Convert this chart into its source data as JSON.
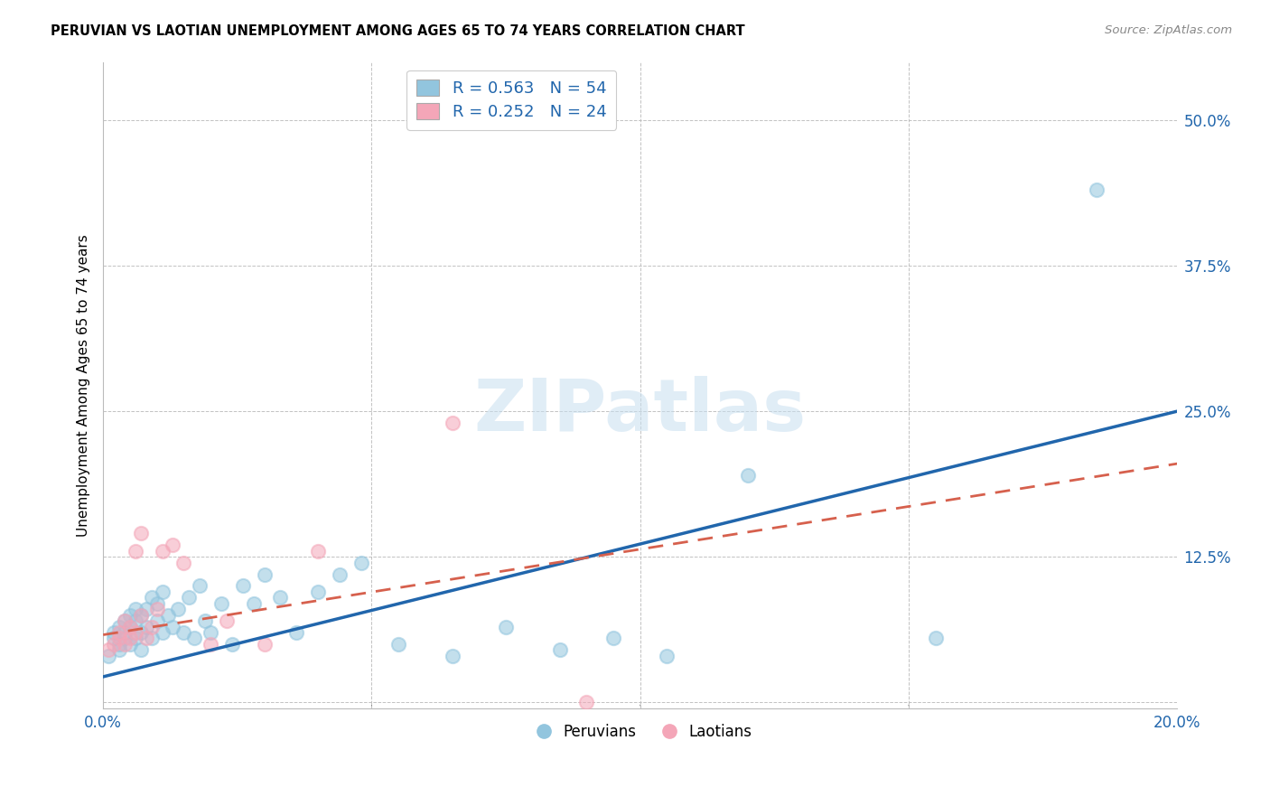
{
  "title": "PERUVIAN VS LAOTIAN UNEMPLOYMENT AMONG AGES 65 TO 74 YEARS CORRELATION CHART",
  "source": "Source: ZipAtlas.com",
  "ylabel": "Unemployment Among Ages 65 to 74 years",
  "xlim": [
    0.0,
    0.2
  ],
  "ylim": [
    -0.005,
    0.55
  ],
  "ytick_vals": [
    0.0,
    0.125,
    0.25,
    0.375,
    0.5
  ],
  "ytick_labels": [
    "",
    "12.5%",
    "25.0%",
    "37.5%",
    "50.0%"
  ],
  "xtick_vals": [
    0.0,
    0.05,
    0.1,
    0.15,
    0.2
  ],
  "xtick_labels": [
    "0.0%",
    "",
    "",
    "",
    "20.0%"
  ],
  "peruvian_color": "#92c5de",
  "laotian_color": "#f4a6b8",
  "peruvian_line_color": "#2166ac",
  "laotian_line_color": "#d6604d",
  "peruvian_x": [
    0.001,
    0.002,
    0.002,
    0.003,
    0.003,
    0.003,
    0.004,
    0.004,
    0.004,
    0.005,
    0.005,
    0.005,
    0.006,
    0.006,
    0.006,
    0.007,
    0.007,
    0.007,
    0.008,
    0.008,
    0.009,
    0.009,
    0.01,
    0.01,
    0.011,
    0.011,
    0.012,
    0.013,
    0.014,
    0.015,
    0.016,
    0.017,
    0.018,
    0.019,
    0.02,
    0.022,
    0.024,
    0.026,
    0.028,
    0.03,
    0.033,
    0.036,
    0.04,
    0.044,
    0.048,
    0.055,
    0.065,
    0.075,
    0.085,
    0.095,
    0.105,
    0.12,
    0.155,
    0.185
  ],
  "peruvian_y": [
    0.04,
    0.055,
    0.06,
    0.045,
    0.05,
    0.065,
    0.055,
    0.06,
    0.07,
    0.05,
    0.065,
    0.075,
    0.055,
    0.07,
    0.08,
    0.045,
    0.06,
    0.075,
    0.065,
    0.08,
    0.055,
    0.09,
    0.07,
    0.085,
    0.06,
    0.095,
    0.075,
    0.065,
    0.08,
    0.06,
    0.09,
    0.055,
    0.1,
    0.07,
    0.06,
    0.085,
    0.05,
    0.1,
    0.085,
    0.11,
    0.09,
    0.06,
    0.095,
    0.11,
    0.12,
    0.05,
    0.04,
    0.065,
    0.045,
    0.055,
    0.04,
    0.195,
    0.055,
    0.44
  ],
  "laotian_x": [
    0.001,
    0.002,
    0.003,
    0.003,
    0.004,
    0.004,
    0.005,
    0.005,
    0.006,
    0.006,
    0.007,
    0.007,
    0.008,
    0.009,
    0.01,
    0.011,
    0.013,
    0.015,
    0.02,
    0.023,
    0.03,
    0.04,
    0.065,
    0.09
  ],
  "laotian_y": [
    0.045,
    0.05,
    0.055,
    0.06,
    0.05,
    0.07,
    0.055,
    0.065,
    0.06,
    0.13,
    0.075,
    0.145,
    0.055,
    0.065,
    0.08,
    0.13,
    0.135,
    0.12,
    0.05,
    0.07,
    0.05,
    0.13,
    0.24,
    0.0
  ],
  "blue_trendline_x": [
    0.0,
    0.2
  ],
  "blue_trendline_y": [
    0.022,
    0.25
  ],
  "pink_trendline_x": [
    0.0,
    0.2
  ],
  "pink_trendline_y": [
    0.058,
    0.205
  ]
}
